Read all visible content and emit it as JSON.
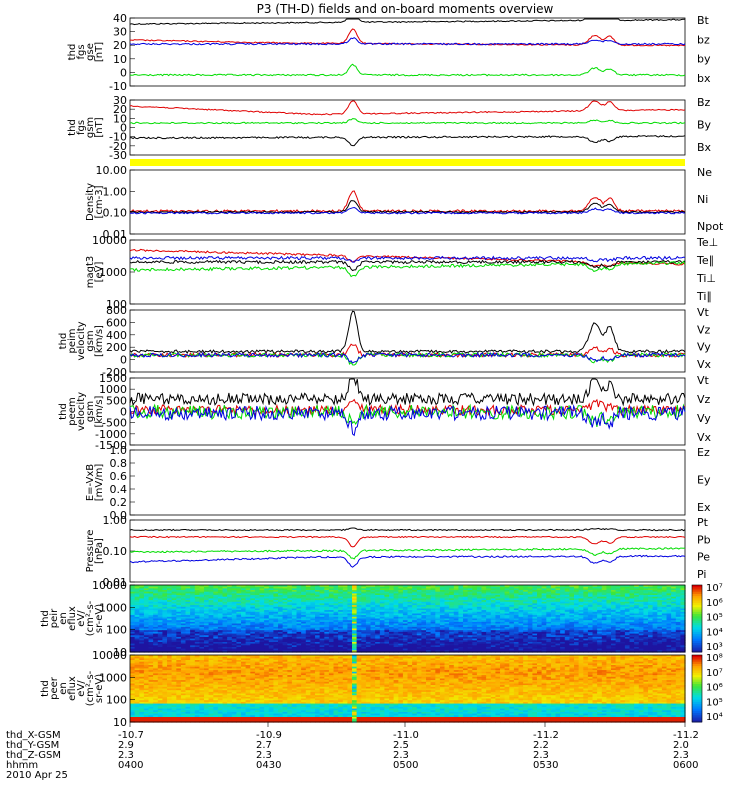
{
  "title": "P3 (TH-D) fields and on-board moments overview",
  "colors": {
    "black": "#000000",
    "red": "#e00000",
    "green": "#00dd00",
    "blue": "#0000e0",
    "yellow": "#ffff00"
  },
  "chart_data": [
    {
      "type": "line",
      "panel": "fgs_gse",
      "ylabel": [
        "thd",
        "fgs",
        "gse",
        "[nT]"
      ],
      "yticks": [
        "40",
        "30",
        "20",
        "10",
        "0",
        "-10"
      ],
      "ylim": [
        -10,
        40
      ],
      "series": [
        {
          "name": "Bt",
          "color": "#000000"
        },
        {
          "name": "bz",
          "color": "#e00000"
        },
        {
          "name": "by",
          "color": "#00dd00"
        },
        {
          "name": "bx",
          "color": "#0000e0"
        }
      ]
    },
    {
      "type": "line",
      "panel": "fgs_gsm",
      "ylabel": [
        "thd",
        "fgs",
        "gsm",
        "[nT]"
      ],
      "yticks": [
        "30",
        "20",
        "10",
        "0",
        "-10",
        "-20",
        "-30"
      ],
      "ylim": [
        -35,
        30
      ],
      "series": [
        {
          "name": "Bz",
          "color": "#e00000"
        },
        {
          "name": "By",
          "color": "#00dd00"
        },
        {
          "name": "Bx",
          "color": "#000000"
        }
      ]
    },
    {
      "type": "line",
      "panel": "density",
      "ylabel": [
        "Density",
        "[cm-3]"
      ],
      "yticks": [
        "10.00",
        "1.00",
        "0.10",
        "0.01"
      ],
      "yscale": "log",
      "series": [
        {
          "name": "Ne",
          "color": "#e00000"
        },
        {
          "name": "Ni",
          "color": "#000000"
        },
        {
          "name": "Npot",
          "color": "#0000e0"
        }
      ]
    },
    {
      "type": "line",
      "panel": "temperature",
      "ylabel": [
        "magt3",
        "[eV]"
      ],
      "yticks": [
        "10000",
        "1000",
        "100"
      ],
      "yscale": "log",
      "series": [
        {
          "name": "Te⊥",
          "color": "#e00000"
        },
        {
          "name": "Te∥",
          "color": "#000000"
        },
        {
          "name": "Ti⊥",
          "color": "#0000e0"
        },
        {
          "name": "Ti∥",
          "color": "#00dd00"
        }
      ]
    },
    {
      "type": "line",
      "panel": "peim_velocity",
      "ylabel": [
        "thd",
        "peim",
        "velocity",
        "gsm",
        "[km/s]"
      ],
      "yticks": [
        "800",
        "600",
        "400",
        "200",
        "0",
        "-200"
      ],
      "ylim": [
        -200,
        800
      ],
      "series": [
        {
          "name": "Vt",
          "color": "#000000"
        },
        {
          "name": "Vz",
          "color": "#e00000"
        },
        {
          "name": "Vy",
          "color": "#00dd00"
        },
        {
          "name": "Vx",
          "color": "#0000e0"
        }
      ]
    },
    {
      "type": "line",
      "panel": "peem_velocity",
      "ylabel": [
        "thd",
        "peem",
        "velocity",
        "gsm",
        "[km/s]"
      ],
      "yticks": [
        "1500",
        "1000",
        "500",
        "0",
        "-500",
        "-1000",
        "-1500"
      ],
      "ylim": [
        -1500,
        1500
      ],
      "series": [
        {
          "name": "Vt",
          "color": "#000000"
        },
        {
          "name": "Vz",
          "color": "#e00000"
        },
        {
          "name": "Vy",
          "color": "#00dd00"
        },
        {
          "name": "Vx",
          "color": "#0000e0"
        }
      ]
    },
    {
      "type": "line",
      "panel": "efield",
      "ylabel": [
        "E=-VxB",
        "[mV/m]"
      ],
      "yticks": [
        "1.0",
        "0.8",
        "0.6",
        "0.4",
        "0.2",
        "0.0"
      ],
      "ylim": [
        0,
        1
      ],
      "series": [
        {
          "name": "Ez",
          "color": "#e00000"
        },
        {
          "name": "Ey",
          "color": "#00dd00"
        },
        {
          "name": "Ex",
          "color": "#0000e0"
        }
      ]
    },
    {
      "type": "line",
      "panel": "pressure",
      "ylabel": [
        "Pressure",
        "[nPa]"
      ],
      "yticks": [
        "1.00",
        "0.10",
        "0.01"
      ],
      "yscale": "log",
      "series": [
        {
          "name": "Pt",
          "color": "#000000"
        },
        {
          "name": "Pb",
          "color": "#e00000"
        },
        {
          "name": "Pe",
          "color": "#00dd00"
        },
        {
          "name": "Pi",
          "color": "#0000e0"
        }
      ]
    },
    {
      "type": "heatmap",
      "panel": "peir_en_eflux",
      "ylabel": [
        "thd",
        "peir",
        "en",
        "eflux",
        "eV/",
        "(cm^2-s-",
        "sr-eV)"
      ],
      "yticks": [
        "10000",
        "1000",
        "100",
        "10"
      ],
      "yscale": "log",
      "colorbar": [
        "10^7",
        "10^6",
        "10^5",
        "10^4",
        "10^3"
      ]
    },
    {
      "type": "heatmap",
      "panel": "peer_en_eflux",
      "ylabel": [
        "thd",
        "peer",
        "en",
        "eflux",
        "eV/",
        "(cm^2-s-",
        "sr-eV)"
      ],
      "yticks": [
        "10000",
        "1000",
        "100",
        "10"
      ],
      "yscale": "log",
      "colorbar": [
        "10^8",
        "10^7",
        "10^6",
        "10^5",
        "10^4"
      ]
    }
  ],
  "xaxis": {
    "rows": [
      {
        "label": "thd_X-GSM",
        "values": [
          "-10.7",
          "-10.9",
          "-11.0",
          "-11.0",
          "-11.2",
          "-11.2"
        ]
      },
      {
        "label": "thd_Y-GSM",
        "values": [
          "2.9",
          "2.7",
          "2.5",
          "2.5",
          "2.2",
          "2.0"
        ]
      },
      {
        "label": "thd_Z-GSM",
        "values": [
          "2.3",
          "2.3",
          "2.3",
          "2.3",
          "2.3",
          "2.3"
        ]
      },
      {
        "label": "hhmm",
        "values": [
          "0400",
          "0430",
          "0500",
          "0500",
          "0530",
          "0600"
        ]
      }
    ],
    "date": "2010 Apr 25"
  }
}
